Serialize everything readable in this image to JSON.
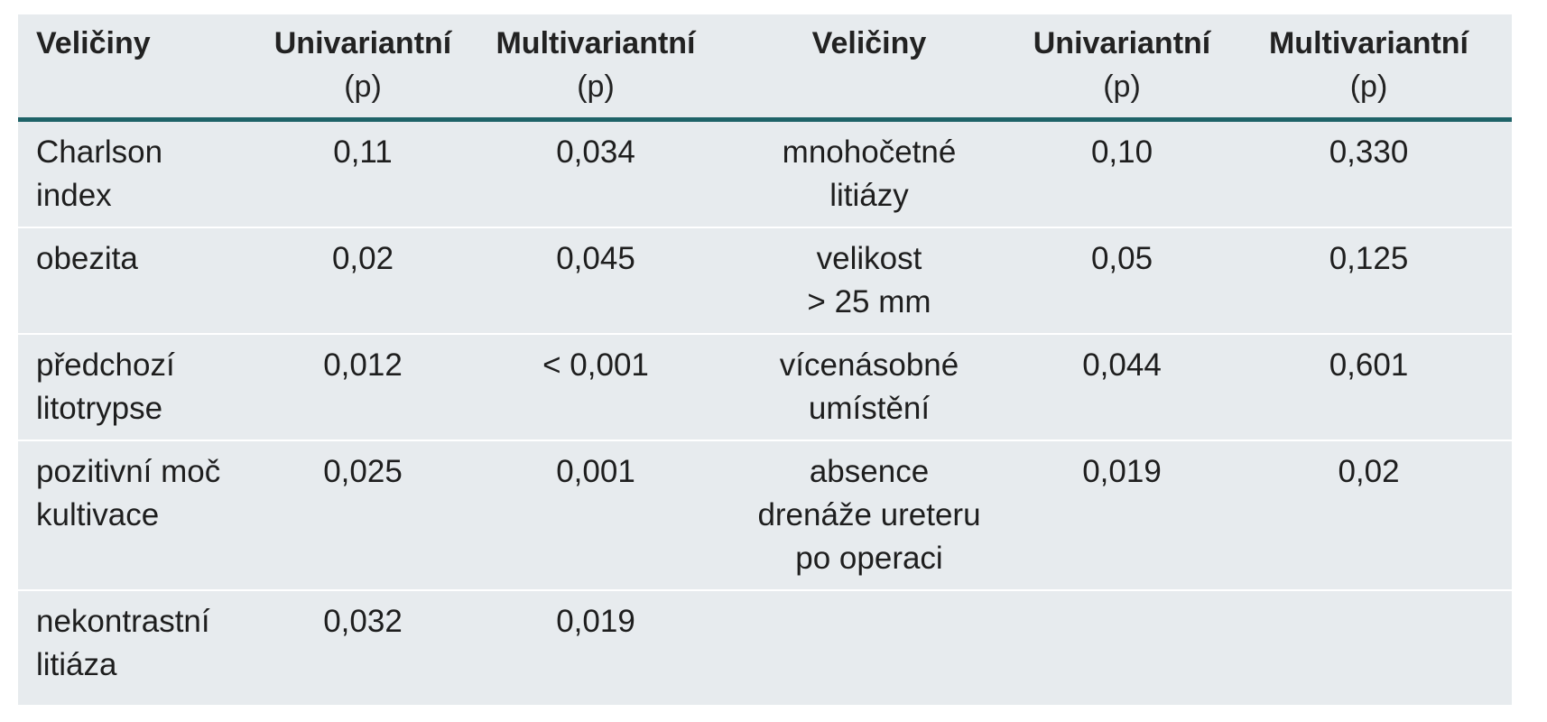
{
  "table": {
    "headers": [
      {
        "line1": "Veličiny",
        "line2": ""
      },
      {
        "line1": "Univariantní",
        "line2": "(p)"
      },
      {
        "line1": "Multivariantní",
        "line2": "(p)"
      },
      {
        "line1": "Veličiny",
        "line2": ""
      },
      {
        "line1": "Univariantní",
        "line2": "(p)"
      },
      {
        "line1": "Multivariantní",
        "line2": "(p)"
      }
    ],
    "rows": [
      {
        "left_name": "Charlson\nindex",
        "left_uni": "0,11",
        "left_multi": "0,034",
        "right_name": "mnohočetné\nlitiázy",
        "right_uni": "0,10",
        "right_multi": "0,330"
      },
      {
        "left_name": "obezita",
        "left_uni": "0,02",
        "left_multi": "0,045",
        "right_name": "velikost\n> 25 mm",
        "right_uni": "0,05",
        "right_multi": "0,125"
      },
      {
        "left_name": "předchozí\nlitotrypse",
        "left_uni": "0,012",
        "left_multi": "< 0,001",
        "right_name": "vícenásobné\numístění",
        "right_uni": "0,044",
        "right_multi": "0,601"
      },
      {
        "left_name": "pozitivní moč\nkultivace",
        "left_uni": "0,025",
        "left_multi": "0,001",
        "right_name": "absence\ndrenáže ureteru\npo operaci",
        "right_uni": "0,019",
        "right_multi": "0,02"
      },
      {
        "left_name": "nekontrastní\nlitiáza",
        "left_uni": "0,032",
        "left_multi": "0,019",
        "right_name": "",
        "right_uni": "",
        "right_multi": ""
      }
    ]
  },
  "colors": {
    "table_background": "#e7ebee",
    "header_rule": "#1f6368",
    "row_separator": "#ffffff"
  }
}
